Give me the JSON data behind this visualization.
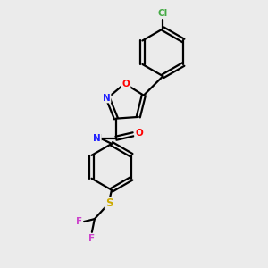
{
  "background_color": "#ebebeb",
  "bond_color": "#000000",
  "atom_colors": {
    "N": "#2020ff",
    "O": "#ff0000",
    "S": "#ccaa00",
    "F": "#cc44cc",
    "Cl": "#44aa44",
    "H": "#888888",
    "C": "#000000"
  }
}
